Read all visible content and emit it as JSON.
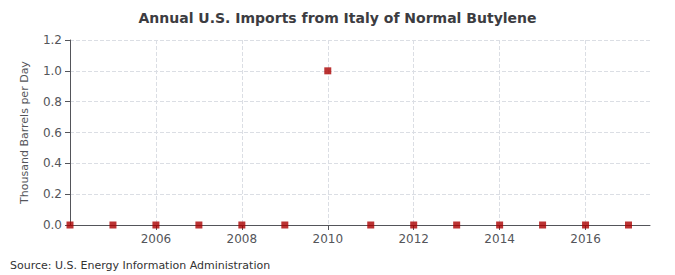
{
  "chart_data": {
    "type": "scatter",
    "title": "Annual U.S. Imports from Italy of Normal Butylene",
    "ylabel": "Thousand Barrels per Day",
    "annotations": [
      "Source: U.S. Energy Information Administration"
    ],
    "x": [
      2004,
      2005,
      2006,
      2007,
      2008,
      2009,
      2010,
      2011,
      2012,
      2013,
      2014,
      2015,
      2016,
      2017
    ],
    "values": [
      0.0,
      0.0,
      0.0,
      0.0,
      0.0,
      0.0,
      1.0,
      0.0,
      0.0,
      0.0,
      0.0,
      0.0,
      0.0,
      0.0
    ],
    "color": "#aa0000",
    "marker": "square",
    "xlim": [
      2004.0,
      2017.5
    ],
    "xticks": [
      2006,
      2008,
      2010,
      2012,
      2014,
      2016
    ],
    "ylim": [
      0.0,
      1.2
    ],
    "yticks": [
      {
        "value": 0.0,
        "label": "0.0"
      },
      0.2,
      0.4,
      0.6,
      0.8,
      {
        "value": 1.0,
        "label": "1.0"
      },
      1.2
    ],
    "grid": true
  }
}
